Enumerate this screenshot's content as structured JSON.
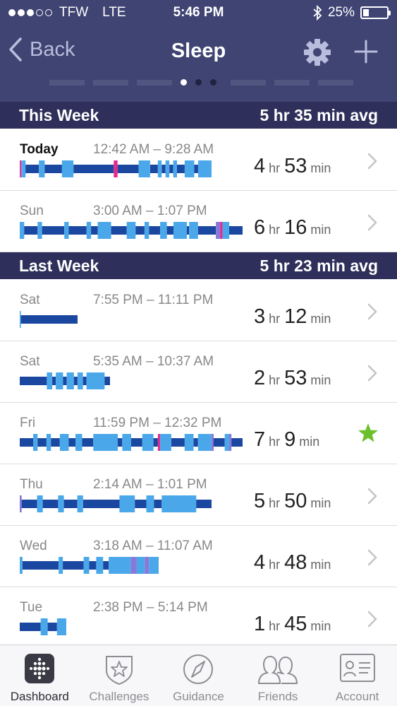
{
  "status": {
    "carrier": "TFW",
    "network": "LTE",
    "time": "5:46 PM",
    "battery_text": "25%",
    "battery_level": 0.25,
    "signal_bars_filled": 3,
    "signal_bars_total": 5
  },
  "nav": {
    "back_label": "Back",
    "title": "Sleep",
    "icons": [
      "chevron-left-icon",
      "gear-icon",
      "plus-icon"
    ]
  },
  "pager": {
    "page_count": 3,
    "active_index": 0
  },
  "colors": {
    "header": "#3f4473",
    "section": "#2e2f5a",
    "deep": "#1a47a0",
    "light": "#4aa8ea",
    "awake": "#e8288c",
    "restless": "#8a78d8",
    "star": "#6bbf2a"
  },
  "sections": [
    {
      "title": "This Week",
      "avg": "5 hr 35 min avg"
    },
    {
      "title": "Last Week",
      "avg": "5 hr 23 min avg"
    }
  ],
  "rows": [
    {
      "day": "Today",
      "range": "12:42 AM – 9:28 AM",
      "hr": "4",
      "min": "53",
      "hr_unit": "hr",
      "min_unit": "min",
      "bold": true,
      "trailing": "chevron-right-icon",
      "bar_len": 272,
      "segments": [
        [
          0,
          0.006,
          "awake"
        ],
        [
          0.006,
          0.012,
          "restless"
        ],
        [
          0.012,
          0.03,
          "light"
        ],
        [
          0.03,
          0.1,
          "deep"
        ],
        [
          0.1,
          0.13,
          "light"
        ],
        [
          0.13,
          0.22,
          "deep"
        ],
        [
          0.22,
          0.28,
          "light"
        ],
        [
          0.28,
          0.49,
          "deep"
        ],
        [
          0.49,
          0.51,
          "awake"
        ],
        [
          0.51,
          0.62,
          "deep"
        ],
        [
          0.62,
          0.68,
          "light"
        ],
        [
          0.68,
          0.72,
          "deep"
        ],
        [
          0.72,
          0.74,
          "light"
        ],
        [
          0.74,
          0.76,
          "deep"
        ],
        [
          0.76,
          0.78,
          "light"
        ],
        [
          0.78,
          0.8,
          "deep"
        ],
        [
          0.8,
          0.82,
          "light"
        ],
        [
          0.82,
          0.86,
          "deep"
        ],
        [
          0.86,
          0.91,
          "light"
        ],
        [
          0.91,
          0.93,
          "deep"
        ],
        [
          0.93,
          1,
          "light"
        ]
      ]
    },
    {
      "day": "Sun",
      "range": "3:00 AM – 1:07 PM",
      "hr": "6",
      "min": "16",
      "hr_unit": "hr",
      "min_unit": "min",
      "bold": false,
      "trailing": "chevron-right-icon",
      "bar_len": 316,
      "segments": [
        [
          0,
          0.02,
          "light"
        ],
        [
          0.02,
          0.08,
          "deep"
        ],
        [
          0.08,
          0.1,
          "light"
        ],
        [
          0.1,
          0.2,
          "deep"
        ],
        [
          0.2,
          0.22,
          "light"
        ],
        [
          0.22,
          0.3,
          "deep"
        ],
        [
          0.3,
          0.32,
          "light"
        ],
        [
          0.32,
          0.35,
          "deep"
        ],
        [
          0.35,
          0.41,
          "light"
        ],
        [
          0.41,
          0.48,
          "deep"
        ],
        [
          0.48,
          0.52,
          "light"
        ],
        [
          0.52,
          0.56,
          "deep"
        ],
        [
          0.56,
          0.58,
          "light"
        ],
        [
          0.58,
          0.63,
          "deep"
        ],
        [
          0.63,
          0.66,
          "light"
        ],
        [
          0.66,
          0.69,
          "deep"
        ],
        [
          0.69,
          0.75,
          "light"
        ],
        [
          0.75,
          0.76,
          "deep"
        ],
        [
          0.76,
          0.8,
          "light"
        ],
        [
          0.8,
          0.88,
          "deep"
        ],
        [
          0.88,
          0.9,
          "restless"
        ],
        [
          0.9,
          0.91,
          "awake"
        ],
        [
          0.91,
          0.94,
          "light"
        ],
        [
          0.94,
          1,
          "deep"
        ]
      ]
    },
    {
      "day": "Sat",
      "range": "7:55 PM – 11:11 PM",
      "hr": "3",
      "min": "12",
      "hr_unit": "hr",
      "min_unit": "min",
      "bold": false,
      "trailing": "chevron-right-icon",
      "bar_len": 82,
      "segments": [
        [
          0,
          0.02,
          "light"
        ],
        [
          0.02,
          1,
          "deep"
        ]
      ]
    },
    {
      "day": "Sat",
      "range": "5:35 AM – 10:37 AM",
      "hr": "2",
      "min": "53",
      "hr_unit": "hr",
      "min_unit": "min",
      "bold": false,
      "trailing": "chevron-right-icon",
      "bar_len": 128,
      "segments": [
        [
          0,
          0.3,
          "deep"
        ],
        [
          0.3,
          0.36,
          "light"
        ],
        [
          0.36,
          0.4,
          "deep"
        ],
        [
          0.4,
          0.48,
          "light"
        ],
        [
          0.48,
          0.52,
          "deep"
        ],
        [
          0.52,
          0.6,
          "light"
        ],
        [
          0.6,
          0.64,
          "deep"
        ],
        [
          0.64,
          0.7,
          "light"
        ],
        [
          0.7,
          0.74,
          "deep"
        ],
        [
          0.74,
          0.94,
          "light"
        ],
        [
          0.94,
          1,
          "deep"
        ]
      ]
    },
    {
      "day": "Fri",
      "range": "11:59 PM – 12:32 PM",
      "hr": "7",
      "min": "9",
      "hr_unit": "hr",
      "min_unit": "min",
      "bold": false,
      "trailing": "star-icon",
      "bar_len": 316,
      "segments": [
        [
          0,
          0.06,
          "deep"
        ],
        [
          0.06,
          0.08,
          "light"
        ],
        [
          0.08,
          0.12,
          "deep"
        ],
        [
          0.12,
          0.14,
          "light"
        ],
        [
          0.14,
          0.18,
          "deep"
        ],
        [
          0.18,
          0.22,
          "light"
        ],
        [
          0.22,
          0.25,
          "deep"
        ],
        [
          0.25,
          0.28,
          "light"
        ],
        [
          0.28,
          0.33,
          "deep"
        ],
        [
          0.33,
          0.44,
          "light"
        ],
        [
          0.44,
          0.46,
          "deep"
        ],
        [
          0.46,
          0.5,
          "light"
        ],
        [
          0.5,
          0.55,
          "deep"
        ],
        [
          0.55,
          0.6,
          "light"
        ],
        [
          0.6,
          0.62,
          "deep"
        ],
        [
          0.62,
          0.63,
          "awake"
        ],
        [
          0.63,
          0.68,
          "light"
        ],
        [
          0.68,
          0.74,
          "deep"
        ],
        [
          0.74,
          0.78,
          "light"
        ],
        [
          0.78,
          0.8,
          "deep"
        ],
        [
          0.8,
          0.86,
          "light"
        ],
        [
          0.86,
          0.87,
          "restless"
        ],
        [
          0.87,
          0.92,
          "deep"
        ],
        [
          0.92,
          0.94,
          "light"
        ],
        [
          0.94,
          0.95,
          "restless"
        ],
        [
          0.95,
          1,
          "deep"
        ]
      ]
    },
    {
      "day": "Thu",
      "range": "2:14 AM – 1:01 PM",
      "hr": "5",
      "min": "50",
      "hr_unit": "hr",
      "min_unit": "min",
      "bold": false,
      "trailing": "chevron-right-icon",
      "bar_len": 272,
      "segments": [
        [
          0,
          0.01,
          "restless"
        ],
        [
          0.01,
          0.09,
          "deep"
        ],
        [
          0.09,
          0.12,
          "light"
        ],
        [
          0.12,
          0.2,
          "deep"
        ],
        [
          0.2,
          0.23,
          "light"
        ],
        [
          0.23,
          0.3,
          "deep"
        ],
        [
          0.3,
          0.33,
          "light"
        ],
        [
          0.33,
          0.52,
          "deep"
        ],
        [
          0.52,
          0.6,
          "light"
        ],
        [
          0.6,
          0.66,
          "deep"
        ],
        [
          0.66,
          0.7,
          "light"
        ],
        [
          0.7,
          0.74,
          "deep"
        ],
        [
          0.74,
          0.92,
          "light"
        ],
        [
          0.92,
          1,
          "deep"
        ]
      ]
    },
    {
      "day": "Wed",
      "range": "3:18 AM – 11:07 AM",
      "hr": "4",
      "min": "48",
      "hr_unit": "hr",
      "min_unit": "min",
      "bold": false,
      "trailing": "chevron-right-icon",
      "bar_len": 197,
      "segments": [
        [
          0,
          0.02,
          "light"
        ],
        [
          0.02,
          0.28,
          "deep"
        ],
        [
          0.28,
          0.31,
          "light"
        ],
        [
          0.31,
          0.46,
          "deep"
        ],
        [
          0.46,
          0.5,
          "light"
        ],
        [
          0.5,
          0.55,
          "deep"
        ],
        [
          0.55,
          0.6,
          "light"
        ],
        [
          0.6,
          0.64,
          "deep"
        ],
        [
          0.64,
          0.8,
          "light"
        ],
        [
          0.8,
          0.84,
          "restless"
        ],
        [
          0.84,
          0.9,
          "light"
        ],
        [
          0.9,
          0.93,
          "restless"
        ],
        [
          0.93,
          1,
          "light"
        ]
      ]
    },
    {
      "day": "Tue",
      "range": "2:38 PM – 5:14 PM",
      "hr": "1",
      "min": "45",
      "hr_unit": "hr",
      "min_unit": "min",
      "bold": false,
      "trailing": "chevron-right-icon",
      "bar_len": 66,
      "segments": [
        [
          0,
          0.45,
          "deep"
        ],
        [
          0.45,
          0.6,
          "light"
        ],
        [
          0.6,
          0.8,
          "deep"
        ],
        [
          0.8,
          1,
          "light"
        ]
      ]
    }
  ],
  "tabs": [
    {
      "label": "Dashboard",
      "icon": "dashboard-icon",
      "active": true
    },
    {
      "label": "Challenges",
      "icon": "challenges-icon",
      "active": false
    },
    {
      "label": "Guidance",
      "icon": "compass-icon",
      "active": false
    },
    {
      "label": "Friends",
      "icon": "friends-icon",
      "active": false
    },
    {
      "label": "Account",
      "icon": "account-icon",
      "active": false
    }
  ]
}
